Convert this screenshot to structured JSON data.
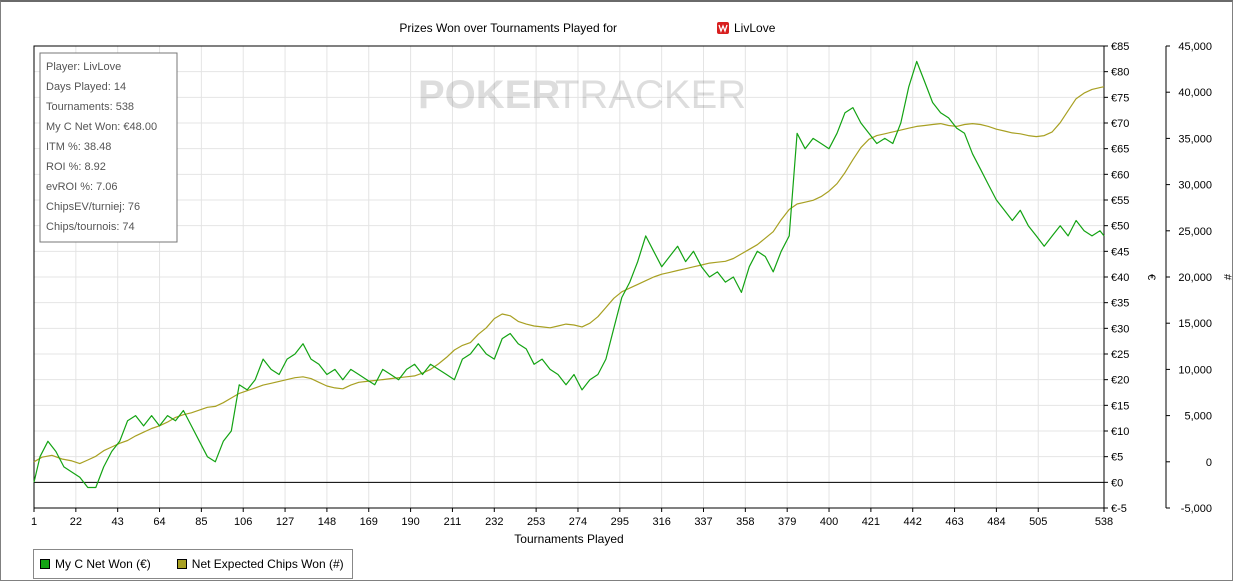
{
  "chart_data": {
    "type": "line",
    "title": "Prizes Won over Tournaments Played for",
    "player_name": "LivLove",
    "xlabel": "Tournaments Played",
    "x_ticks": [
      "1",
      "22",
      "43",
      "64",
      "85",
      "106",
      "127",
      "148",
      "169",
      "190",
      "211",
      "232",
      "253",
      "274",
      "295",
      "316",
      "337",
      "358",
      "379",
      "400",
      "421",
      "442",
      "463",
      "484",
      "505",
      "538"
    ],
    "xlim": [
      1,
      538
    ],
    "y_left": {
      "label": "€",
      "min": -5,
      "max": 85,
      "ticks": [
        "€85",
        "€80",
        "€75",
        "€70",
        "€65",
        "€60",
        "€55",
        "€50",
        "€45",
        "€40",
        "€35",
        "€30",
        "€25",
        "€20",
        "€15",
        "€10",
        "€5",
        "€0",
        "€-5"
      ]
    },
    "y_right": {
      "label": "#",
      "min": -5000,
      "max": 45000,
      "ticks": [
        "45,000",
        "40,000",
        "35,000",
        "30,000",
        "25,000",
        "20,000",
        "15,000",
        "10,000",
        "5,000",
        "0",
        "-5,000"
      ]
    },
    "grid": true,
    "watermark_left": "POKER",
    "watermark_right": "TRACKER",
    "stats": [
      "Player: LivLove",
      "Days Played: 14",
      "Tournaments: 538",
      "My C Net Won: €48.00",
      "ITM %: 38.48",
      "ROI %: 8.92",
      "evROI %: 7.06",
      "ChipsEV/turniej: 76",
      "Chips/tournois: 74"
    ],
    "legend_placement": "bottom-left",
    "series": [
      {
        "name": "My C Net Won (€)",
        "axis": "left",
        "color": "#13a313",
        "points": [
          [
            1,
            0
          ],
          [
            4,
            5
          ],
          [
            8,
            8
          ],
          [
            12,
            6
          ],
          [
            16,
            3
          ],
          [
            20,
            2
          ],
          [
            24,
            1
          ],
          [
            28,
            -1
          ],
          [
            32,
            -1
          ],
          [
            36,
            3
          ],
          [
            40,
            6
          ],
          [
            44,
            8
          ],
          [
            48,
            12
          ],
          [
            52,
            13
          ],
          [
            56,
            11
          ],
          [
            60,
            13
          ],
          [
            64,
            11
          ],
          [
            68,
            13
          ],
          [
            72,
            12
          ],
          [
            76,
            14
          ],
          [
            80,
            11
          ],
          [
            84,
            8
          ],
          [
            88,
            5
          ],
          [
            92,
            4
          ],
          [
            96,
            8
          ],
          [
            100,
            10
          ],
          [
            104,
            19
          ],
          [
            108,
            18
          ],
          [
            112,
            20
          ],
          [
            116,
            24
          ],
          [
            120,
            22
          ],
          [
            124,
            21
          ],
          [
            128,
            24
          ],
          [
            132,
            25
          ],
          [
            136,
            27
          ],
          [
            140,
            24
          ],
          [
            144,
            23
          ],
          [
            148,
            21
          ],
          [
            152,
            22
          ],
          [
            156,
            20
          ],
          [
            160,
            22
          ],
          [
            164,
            21
          ],
          [
            168,
            20
          ],
          [
            172,
            19
          ],
          [
            176,
            22
          ],
          [
            180,
            21
          ],
          [
            184,
            20
          ],
          [
            188,
            22
          ],
          [
            192,
            23
          ],
          [
            196,
            21
          ],
          [
            200,
            23
          ],
          [
            204,
            22
          ],
          [
            208,
            21
          ],
          [
            212,
            20
          ],
          [
            216,
            24
          ],
          [
            220,
            25
          ],
          [
            224,
            27
          ],
          [
            228,
            25
          ],
          [
            232,
            24
          ],
          [
            236,
            28
          ],
          [
            240,
            29
          ],
          [
            244,
            27
          ],
          [
            248,
            26
          ],
          [
            252,
            23
          ],
          [
            256,
            24
          ],
          [
            260,
            22
          ],
          [
            264,
            21
          ],
          [
            268,
            19
          ],
          [
            272,
            21
          ],
          [
            276,
            18
          ],
          [
            280,
            20
          ],
          [
            284,
            21
          ],
          [
            288,
            24
          ],
          [
            292,
            30
          ],
          [
            296,
            36
          ],
          [
            300,
            39
          ],
          [
            304,
            43
          ],
          [
            308,
            48
          ],
          [
            312,
            45
          ],
          [
            316,
            42
          ],
          [
            320,
            44
          ],
          [
            324,
            46
          ],
          [
            328,
            43
          ],
          [
            332,
            45
          ],
          [
            336,
            42
          ],
          [
            340,
            40
          ],
          [
            344,
            41
          ],
          [
            348,
            39
          ],
          [
            352,
            40
          ],
          [
            356,
            37
          ],
          [
            360,
            42
          ],
          [
            364,
            45
          ],
          [
            368,
            44
          ],
          [
            372,
            41
          ],
          [
            376,
            45
          ],
          [
            380,
            48
          ],
          [
            384,
            68
          ],
          [
            388,
            65
          ],
          [
            392,
            67
          ],
          [
            396,
            66
          ],
          [
            400,
            65
          ],
          [
            404,
            68
          ],
          [
            408,
            72
          ],
          [
            412,
            73
          ],
          [
            416,
            70
          ],
          [
            420,
            68
          ],
          [
            424,
            66
          ],
          [
            428,
            67
          ],
          [
            432,
            66
          ],
          [
            436,
            70
          ],
          [
            440,
            77
          ],
          [
            444,
            82
          ],
          [
            448,
            78
          ],
          [
            452,
            74
          ],
          [
            456,
            72
          ],
          [
            460,
            71
          ],
          [
            464,
            69
          ],
          [
            468,
            68
          ],
          [
            472,
            64
          ],
          [
            476,
            61
          ],
          [
            480,
            58
          ],
          [
            484,
            55
          ],
          [
            488,
            53
          ],
          [
            492,
            51
          ],
          [
            496,
            53
          ],
          [
            500,
            50
          ],
          [
            504,
            48
          ],
          [
            508,
            46
          ],
          [
            512,
            48
          ],
          [
            516,
            50
          ],
          [
            520,
            48
          ],
          [
            524,
            51
          ],
          [
            528,
            49
          ],
          [
            532,
            48
          ],
          [
            536,
            49
          ],
          [
            538,
            48
          ]
        ]
      },
      {
        "name": "Net Expected Chips Won (#)",
        "axis": "right",
        "color": "#a8a022",
        "points": [
          [
            1,
            0
          ],
          [
            5,
            500
          ],
          [
            10,
            700
          ],
          [
            15,
            300
          ],
          [
            20,
            100
          ],
          [
            24,
            -200
          ],
          [
            28,
            200
          ],
          [
            32,
            600
          ],
          [
            36,
            1200
          ],
          [
            40,
            1600
          ],
          [
            44,
            2000
          ],
          [
            48,
            2300
          ],
          [
            52,
            2800
          ],
          [
            56,
            3200
          ],
          [
            60,
            3600
          ],
          [
            64,
            3900
          ],
          [
            68,
            4300
          ],
          [
            72,
            4800
          ],
          [
            76,
            5100
          ],
          [
            80,
            5300
          ],
          [
            84,
            5600
          ],
          [
            88,
            5900
          ],
          [
            92,
            6000
          ],
          [
            96,
            6400
          ],
          [
            100,
            6900
          ],
          [
            104,
            7400
          ],
          [
            108,
            7700
          ],
          [
            112,
            8000
          ],
          [
            116,
            8300
          ],
          [
            120,
            8500
          ],
          [
            124,
            8700
          ],
          [
            128,
            8900
          ],
          [
            132,
            9100
          ],
          [
            136,
            9200
          ],
          [
            140,
            9000
          ],
          [
            144,
            8600
          ],
          [
            148,
            8200
          ],
          [
            152,
            8000
          ],
          [
            156,
            7900
          ],
          [
            160,
            8300
          ],
          [
            164,
            8600
          ],
          [
            168,
            8700
          ],
          [
            172,
            8800
          ],
          [
            176,
            8900
          ],
          [
            180,
            9000
          ],
          [
            184,
            9100
          ],
          [
            188,
            9200
          ],
          [
            192,
            9300
          ],
          [
            196,
            9600
          ],
          [
            200,
            10000
          ],
          [
            204,
            10600
          ],
          [
            208,
            11300
          ],
          [
            212,
            12100
          ],
          [
            216,
            12600
          ],
          [
            220,
            12900
          ],
          [
            224,
            13800
          ],
          [
            228,
            14500
          ],
          [
            232,
            15500
          ],
          [
            236,
            16000
          ],
          [
            240,
            15800
          ],
          [
            244,
            15200
          ],
          [
            248,
            14900
          ],
          [
            252,
            14700
          ],
          [
            256,
            14600
          ],
          [
            260,
            14500
          ],
          [
            264,
            14700
          ],
          [
            268,
            14900
          ],
          [
            272,
            14800
          ],
          [
            276,
            14600
          ],
          [
            280,
            15000
          ],
          [
            284,
            15700
          ],
          [
            288,
            16700
          ],
          [
            292,
            17700
          ],
          [
            296,
            18400
          ],
          [
            300,
            18800
          ],
          [
            304,
            19200
          ],
          [
            308,
            19600
          ],
          [
            312,
            20000
          ],
          [
            316,
            20300
          ],
          [
            320,
            20500
          ],
          [
            324,
            20700
          ],
          [
            328,
            20900
          ],
          [
            332,
            21100
          ],
          [
            336,
            21300
          ],
          [
            340,
            21500
          ],
          [
            344,
            21600
          ],
          [
            348,
            21700
          ],
          [
            352,
            22000
          ],
          [
            356,
            22500
          ],
          [
            360,
            23000
          ],
          [
            364,
            23500
          ],
          [
            368,
            24200
          ],
          [
            372,
            24900
          ],
          [
            376,
            26200
          ],
          [
            380,
            27300
          ],
          [
            384,
            27900
          ],
          [
            388,
            28100
          ],
          [
            392,
            28300
          ],
          [
            396,
            28700
          ],
          [
            400,
            29300
          ],
          [
            404,
            30100
          ],
          [
            408,
            31300
          ],
          [
            412,
            32700
          ],
          [
            416,
            34000
          ],
          [
            420,
            34900
          ],
          [
            424,
            35300
          ],
          [
            428,
            35500
          ],
          [
            432,
            35700
          ],
          [
            436,
            35900
          ],
          [
            440,
            36100
          ],
          [
            444,
            36300
          ],
          [
            448,
            36400
          ],
          [
            452,
            36500
          ],
          [
            456,
            36600
          ],
          [
            460,
            36400
          ],
          [
            464,
            36300
          ],
          [
            468,
            36500
          ],
          [
            472,
            36600
          ],
          [
            476,
            36500
          ],
          [
            480,
            36300
          ],
          [
            484,
            36000
          ],
          [
            488,
            35800
          ],
          [
            492,
            35600
          ],
          [
            496,
            35500
          ],
          [
            500,
            35300
          ],
          [
            504,
            35200
          ],
          [
            508,
            35300
          ],
          [
            512,
            35700
          ],
          [
            516,
            36700
          ],
          [
            520,
            38000
          ],
          [
            524,
            39300
          ],
          [
            528,
            39900
          ],
          [
            532,
            40300
          ],
          [
            536,
            40500
          ],
          [
            538,
            40600
          ]
        ]
      }
    ]
  }
}
